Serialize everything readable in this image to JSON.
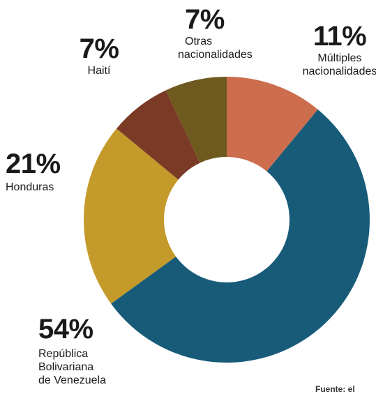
{
  "chart_data": {
    "type": "pie",
    "subtype": "donut",
    "title": "",
    "slices": [
      {
        "label_lines": [
          "Múltiples",
          "nacionalidades"
        ],
        "value": 11,
        "value_label": "11%",
        "color": "#cc6d4d"
      },
      {
        "label_lines": [
          "República",
          "Bolivariana",
          "de Venezuela"
        ],
        "value": 54,
        "value_label": "54%",
        "color": "#175b79"
      },
      {
        "label_lines": [
          "Honduras"
        ],
        "value": 21,
        "value_label": "21%",
        "color": "#c49a2a"
      },
      {
        "label_lines": [
          "Haití"
        ],
        "value": 7,
        "value_label": "7%",
        "color": "#7a3a25"
      },
      {
        "label_lines": [
          "Otras",
          "nacionalidades"
        ],
        "value": 7,
        "value_label": "7%",
        "color": "#6e5a1f"
      }
    ]
  },
  "footer": {
    "source_text": "Fuente: el"
  }
}
